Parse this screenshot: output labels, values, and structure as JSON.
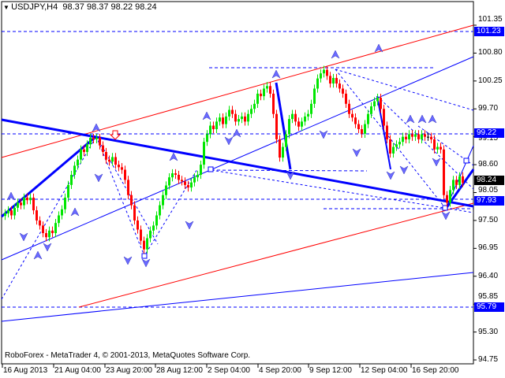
{
  "header": {
    "symbol": "USDJPY,H4",
    "ohlc": "98.37 98.37 98.22 98.24"
  },
  "copyright": "RoboForex - MetaTrader 4, © 2001-2013, MetaQuotes Software Corp.",
  "price_axis": [
    "101.35",
    "100.80",
    "100.25",
    "99.70",
    "99.15",
    "98.60",
    "98.05",
    "97.50",
    "96.95",
    "96.40",
    "95.85",
    "95.30",
    "94.75"
  ],
  "time_axis": [
    "16 Aug 2013",
    "21 Aug 04:00",
    "23 Aug 20:00",
    "28 Aug 12:00",
    "2 Sep 04:00",
    "4 Sep 20:00",
    "9 Sep 12:00",
    "12 Sep 04:00",
    "16 Sep 20:00"
  ],
  "price_markers": [
    {
      "value": "101.23",
      "color": "#0000ff"
    },
    {
      "value": "99.22",
      "color": "#0000ff"
    },
    {
      "value": "98.24",
      "color": "#000000"
    },
    {
      "value": "97.93",
      "color": "#0000ff"
    },
    {
      "value": "95.79",
      "color": "#0000ff"
    }
  ],
  "colors": {
    "bull": "#00e600",
    "bear": "#ff0000",
    "lines": "#0000ff",
    "channel": "#ff0000"
  },
  "chart_data": {
    "type": "candlestick",
    "title": "USDJPY,H4",
    "ylim": [
      94.75,
      101.35
    ],
    "closes": [
      97.64,
      97.7,
      97.6,
      97.75,
      97.85,
      97.8,
      97.95,
      97.9,
      97.95,
      97.7,
      97.5,
      97.4,
      97.25,
      97.17,
      97.3,
      97.25,
      97.45,
      97.6,
      97.72,
      97.95,
      98.2,
      98.4,
      98.58,
      98.7,
      98.9,
      98.85,
      99.0,
      99.13,
      99.1,
      99.13,
      98.98,
      98.85,
      98.7,
      98.66,
      98.75,
      98.6,
      98.55,
      98.5,
      98.3,
      98.0,
      97.8,
      97.5,
      97.32,
      97.1,
      96.93,
      97.15,
      97.3,
      97.4,
      97.6,
      97.8,
      98.0,
      98.19,
      98.35,
      98.43,
      98.4,
      98.3,
      98.27,
      98.2,
      98.15,
      98.25,
      98.35,
      98.4,
      98.6,
      99.05,
      99.2,
      99.37,
      99.3,
      99.45,
      99.53,
      99.4,
      99.55,
      99.68,
      99.6,
      99.45,
      99.5,
      99.55,
      99.45,
      99.6,
      99.7,
      99.8,
      100.0,
      99.95,
      100.1,
      100.15,
      100.0,
      99.6,
      99.1,
      98.74,
      98.95,
      99.2,
      99.5,
      99.6,
      99.45,
      99.35,
      99.45,
      99.55,
      99.6,
      99.8,
      100.1,
      100.3,
      100.4,
      100.47,
      100.35,
      100.2,
      100.31,
      100.2,
      100.1,
      100.0,
      99.8,
      99.6,
      99.53,
      99.4,
      99.3,
      99.21,
      99.4,
      99.6,
      99.75,
      99.85,
      99.92,
      99.7,
      99.37,
      99.1,
      98.82,
      98.95,
      99.0,
      99.05,
      99.15,
      99.1,
      99.2,
      99.15,
      99.2,
      99.1,
      99.2,
      99.15,
      99.15,
      99.1,
      98.9,
      98.95,
      98.9,
      98.0,
      97.85,
      98.1,
      98.3,
      98.2,
      98.37,
      98.24
    ]
  }
}
